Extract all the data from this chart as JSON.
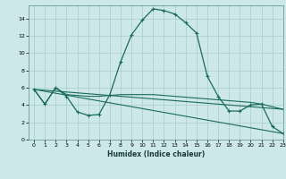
{
  "xlabel": "Humidex (Indice chaleur)",
  "background_color": "#cce8e8",
  "grid_color": "#aacccc",
  "line_color": "#1a6b5a",
  "xlim": [
    -0.5,
    23
  ],
  "ylim": [
    0,
    15.5
  ],
  "xticks": [
    0,
    1,
    2,
    3,
    4,
    5,
    6,
    7,
    8,
    9,
    10,
    11,
    12,
    13,
    14,
    15,
    16,
    17,
    18,
    19,
    20,
    21,
    22,
    23
  ],
  "yticks": [
    0,
    2,
    4,
    6,
    8,
    10,
    12,
    14
  ],
  "series1_x": [
    0,
    1,
    2,
    3,
    4,
    5,
    6,
    7,
    8,
    9,
    10,
    11,
    12,
    13,
    14,
    15,
    16,
    17,
    18,
    19,
    20,
    21,
    22,
    23
  ],
  "series1_y": [
    5.8,
    4.1,
    6.0,
    5.0,
    3.2,
    2.8,
    2.9,
    5.2,
    9.0,
    12.1,
    13.8,
    15.1,
    14.9,
    14.5,
    13.5,
    12.3,
    7.3,
    5.0,
    3.3,
    3.3,
    4.0,
    4.1,
    1.5,
    0.7
  ],
  "series2_x": [
    0,
    1,
    2,
    3,
    4,
    5,
    6,
    7,
    8,
    9,
    10,
    11,
    12,
    13,
    14,
    15,
    16,
    17,
    18,
    19,
    20,
    21,
    22,
    23
  ],
  "series2_y": [
    5.8,
    4.1,
    6.0,
    5.2,
    5.1,
    5.0,
    5.0,
    5.1,
    5.2,
    5.2,
    5.2,
    5.2,
    5.1,
    5.0,
    4.9,
    4.8,
    4.7,
    4.6,
    4.5,
    4.4,
    4.3,
    4.1,
    3.8,
    3.5
  ],
  "series3_x": [
    0,
    23
  ],
  "series3_y": [
    5.8,
    0.7
  ],
  "series4_x": [
    0,
    23
  ],
  "series4_y": [
    5.8,
    3.5
  ]
}
